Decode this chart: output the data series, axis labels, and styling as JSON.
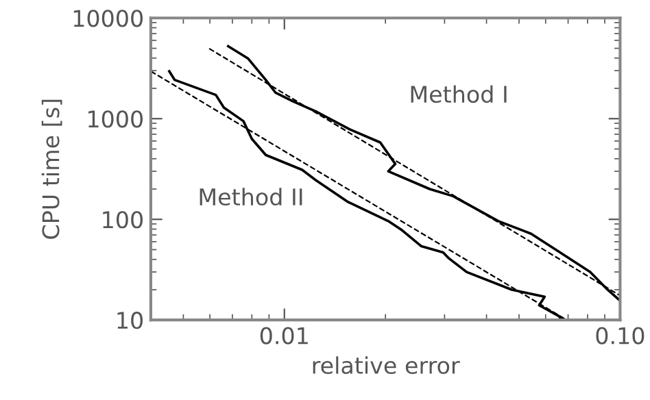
{
  "chart_data": {
    "type": "line",
    "xlabel": "relative error",
    "ylabel": "CPU time [s]",
    "log": "xy",
    "xlim": [
      0.004,
      0.1
    ],
    "ylim": [
      10,
      10000
    ],
    "xticks": [
      {
        "value": 0.01,
        "label": "0.01"
      },
      {
        "value": 0.1,
        "label": "0.10"
      }
    ],
    "yticks": [
      10,
      100,
      1000,
      10000
    ],
    "grid": false,
    "legend": false,
    "marker": "none",
    "series": [
      {
        "name": "Method I",
        "color": "#000000",
        "line_style": "solid",
        "x": [
          0.0068,
          0.0078,
          0.0088,
          0.0094,
          0.0106,
          0.0124,
          0.0157,
          0.0193,
          0.0214,
          0.0204,
          0.0271,
          0.0318,
          0.0434,
          0.0543,
          0.0655,
          0.0814,
          0.0918,
          0.099
        ],
        "values": [
          5250,
          3950,
          2430,
          1820,
          1490,
          1180,
          780,
          580,
          355,
          300,
          200,
          170,
          96,
          72,
          48,
          30,
          20,
          16
        ]
      },
      {
        "name": "Method II",
        "color": "#000000",
        "line_style": "solid",
        "x": [
          0.00454,
          0.00471,
          0.00625,
          0.0066,
          0.00755,
          0.008,
          0.0088,
          0.0113,
          0.0124,
          0.0154,
          0.0204,
          0.0224,
          0.0256,
          0.0297,
          0.0309,
          0.0349,
          0.0476,
          0.0596,
          0.0574,
          0.0655,
          0.0673
        ],
        "values": [
          2960,
          2430,
          1720,
          1290,
          945,
          630,
          436,
          310,
          245,
          150,
          96,
          78,
          54,
          47,
          41,
          30,
          20,
          17,
          14,
          11,
          10
        ]
      },
      {
        "color": "#000000",
        "line_style": "dashed",
        "x": [
          0.00597,
          0.0994
        ],
        "values": [
          4970,
          17.7
        ]
      },
      {
        "color": "#000000",
        "line_style": "dashed",
        "x": [
          0.004,
          0.0693
        ],
        "values": [
          2960,
          10
        ]
      }
    ]
  }
}
